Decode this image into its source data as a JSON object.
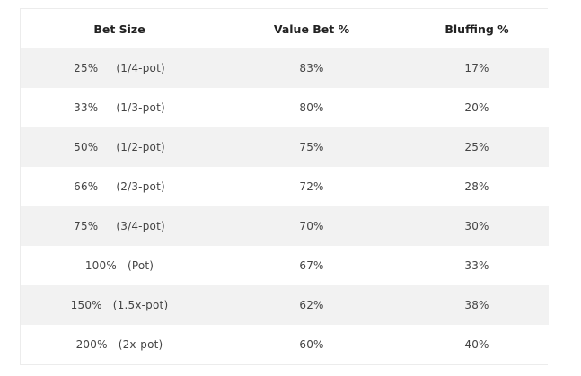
{
  "table": {
    "headers": [
      "Bet Size",
      "Value Bet %",
      "Bluffing %"
    ],
    "rows": [
      {
        "size_pct": "25%",
        "size_desc": "(1/4-pot)",
        "value": "83%",
        "bluff": "17%"
      },
      {
        "size_pct": "33%",
        "size_desc": "(1/3-pot)",
        "value": "80%",
        "bluff": "20%"
      },
      {
        "size_pct": "50%",
        "size_desc": "(1/2-pot)",
        "value": "75%",
        "bluff": "25%"
      },
      {
        "size_pct": "66%",
        "size_desc": "(2/3-pot)",
        "value": "72%",
        "bluff": "28%"
      },
      {
        "size_pct": "75%",
        "size_desc": "(3/4-pot)",
        "value": "70%",
        "bluff": "30%"
      },
      {
        "size_pct": "100%",
        "size_desc": "(Pot)",
        "value": "67%",
        "bluff": "33%"
      },
      {
        "size_pct": "150%",
        "size_desc": "(1.5x-pot)",
        "value": "62%",
        "bluff": "38%"
      },
      {
        "size_pct": "200%",
        "size_desc": "(2x-pot)",
        "value": "60%",
        "bluff": "40%"
      }
    ]
  }
}
